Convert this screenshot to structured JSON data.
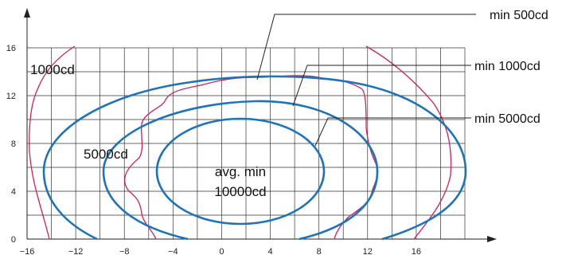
{
  "chart_data": {
    "type": "contour",
    "x_ticks": [
      "−16",
      "−12",
      "−8",
      "−4",
      "0",
      "4",
      "8",
      "12",
      "16"
    ],
    "y_ticks": [
      "0",
      "4",
      "8",
      "12",
      "16"
    ],
    "xlim": [
      -16,
      20
    ],
    "ylim": [
      0,
      16
    ],
    "grid": true,
    "region_labels": {
      "outer": "1000cd",
      "middle": "5000cd",
      "center_line1": "avg. min",
      "center_line2": "10000cd"
    },
    "callouts": {
      "min500": "min 500cd",
      "min1000": "min 1000cd",
      "min5000": "min 5000cd"
    },
    "colors": {
      "blue_contours": "#1e73b9",
      "red_contours": "#d21f5a",
      "grid": "#333333"
    }
  }
}
